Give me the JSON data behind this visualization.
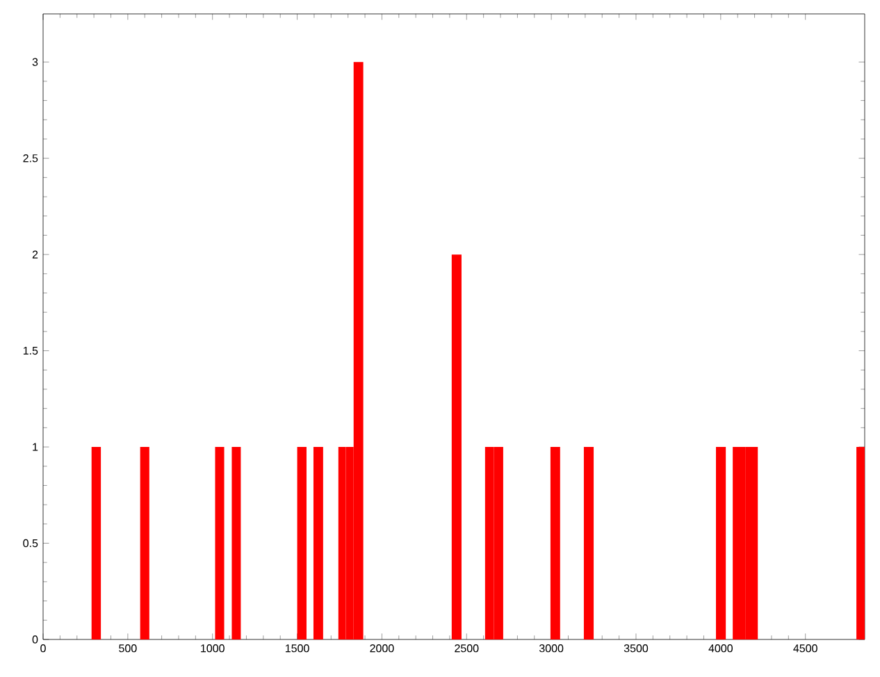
{
  "chart_data": {
    "type": "histogram",
    "bins": [
      286,
      341,
      573,
      627,
      1015,
      1069,
      1113,
      1167,
      1500,
      1555,
      1596,
      1653,
      1743,
      1788,
      1833,
      1890,
      2412,
      2470,
      2609,
      2662,
      2716,
      2995,
      3052,
      3192,
      3250,
      3972,
      4030,
      4071,
      4145,
      4219,
      4801,
      4850
    ],
    "values": [
      1,
      0,
      1,
      0,
      1,
      0,
      1,
      0,
      1,
      0,
      1,
      0,
      1,
      1,
      3,
      0,
      2,
      0,
      1,
      1,
      0,
      1,
      0,
      1,
      0,
      1,
      0,
      1,
      1,
      0,
      1
    ],
    "color": "#ff0000",
    "xlim": [
      0,
      4850
    ],
    "ylim": [
      0,
      3.25
    ],
    "xticks": [
      0,
      500,
      1000,
      1500,
      2000,
      2500,
      3000,
      3500,
      4000,
      4500
    ],
    "yticks": [
      0,
      0.5,
      1,
      1.5,
      2,
      2.5,
      3
    ],
    "grid": false
  }
}
